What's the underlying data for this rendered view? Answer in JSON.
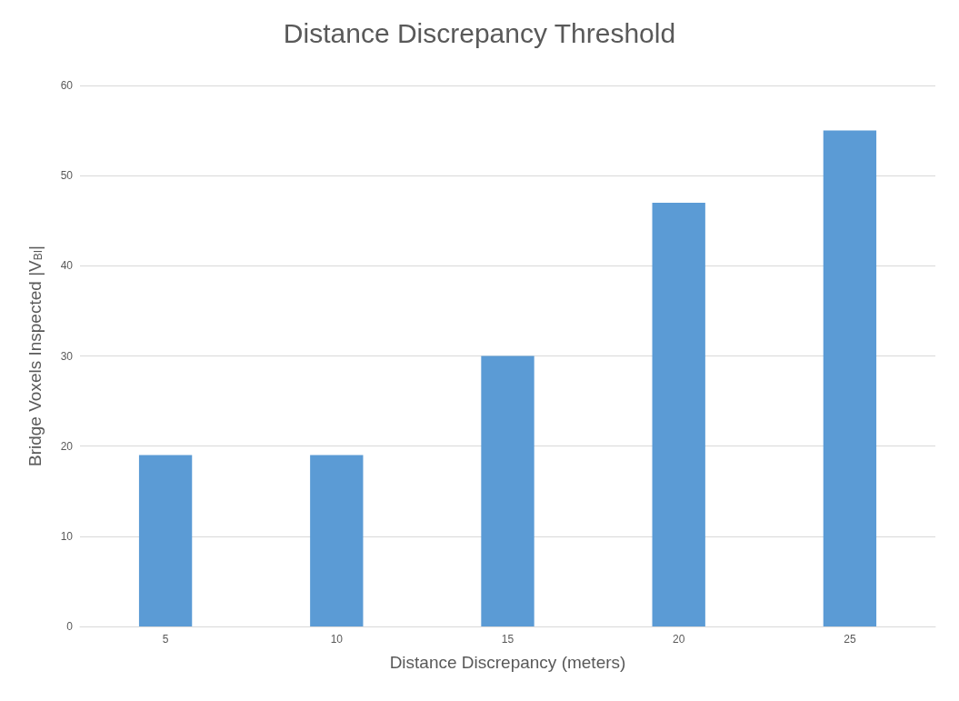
{
  "chart_data": {
    "type": "bar",
    "title": "Distance Discrepancy Threshold",
    "xlabel": "Distance Discrepancy (meters)",
    "ylabel": "Bridge Voxels Inspected |V$_{BI}$|",
    "categories": [
      "5",
      "10",
      "15",
      "20",
      "25"
    ],
    "values": [
      19,
      19,
      30,
      47,
      55
    ],
    "color": "#5b9bd5",
    "ylim": [
      0,
      60
    ],
    "yticks": [
      0,
      10,
      20,
      30,
      40,
      50,
      60
    ],
    "grid": "y"
  }
}
